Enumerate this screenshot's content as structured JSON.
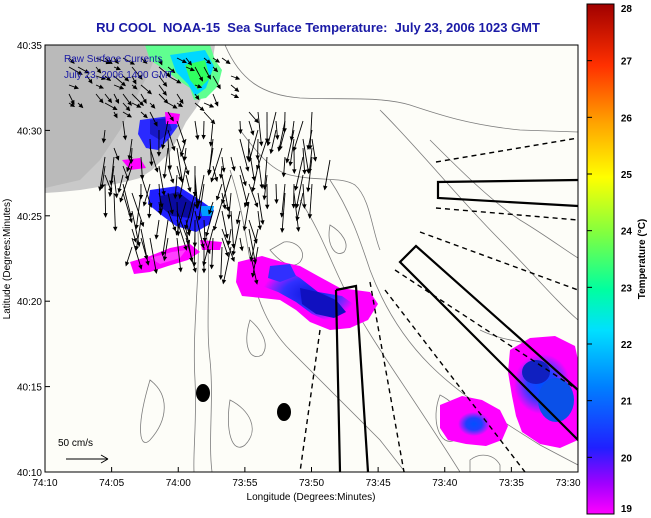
{
  "chart_data": {
    "type": "heatmap",
    "title": "RU COOL  NOAA-15  Sea Surface Temperature:  July 23, 2006 1023 GMT",
    "xlabel": "Longitude (Degrees:Minutes)",
    "ylabel": "Latitude (Degrees:Minutes)",
    "x_ticks": [
      "74:10",
      "74:05",
      "74:00",
      "73:55",
      "73:50",
      "73:45",
      "73:40",
      "73:35",
      "73:30"
    ],
    "y_ticks": [
      "40:35",
      "40:30",
      "40:25",
      "40:20",
      "40:15",
      "40:10"
    ],
    "xlim_min_west": [
      -74.1667,
      -73.5
    ],
    "ylim_deg": [
      40.1667,
      40.5833
    ],
    "overlay_text": [
      "Raw Surface Currents",
      "July 23, 2006 1400 GMT"
    ],
    "scale_label": "50 cm/s",
    "colorbar": {
      "label": "Temperature (°C)",
      "ticks": [
        "28",
        "27",
        "26",
        "25",
        "24",
        "23",
        "22",
        "21",
        "20",
        "19"
      ],
      "range": [
        19,
        28
      ]
    },
    "sst_patches": [
      {
        "region": "north edge near 74:01 W, 40:34 N",
        "temp_c": 22.5
      },
      {
        "region": "near 74:05 W, 40:29 N",
        "temp_c": 20.5
      },
      {
        "region": "near 74:02 W, 40:25 N",
        "temp_c": 19.8
      },
      {
        "region": "near 74:05 W, 40:22 N",
        "temp_c": 19.3
      },
      {
        "region": "near 73:52 W, 40:20 N",
        "temp_c": 20.0
      },
      {
        "region": "near 73:38 W, 40:13 N",
        "temp_c": 20.3
      },
      {
        "region": "near 73:33 W, 40:16 N",
        "temp_c": 20.5
      }
    ]
  }
}
